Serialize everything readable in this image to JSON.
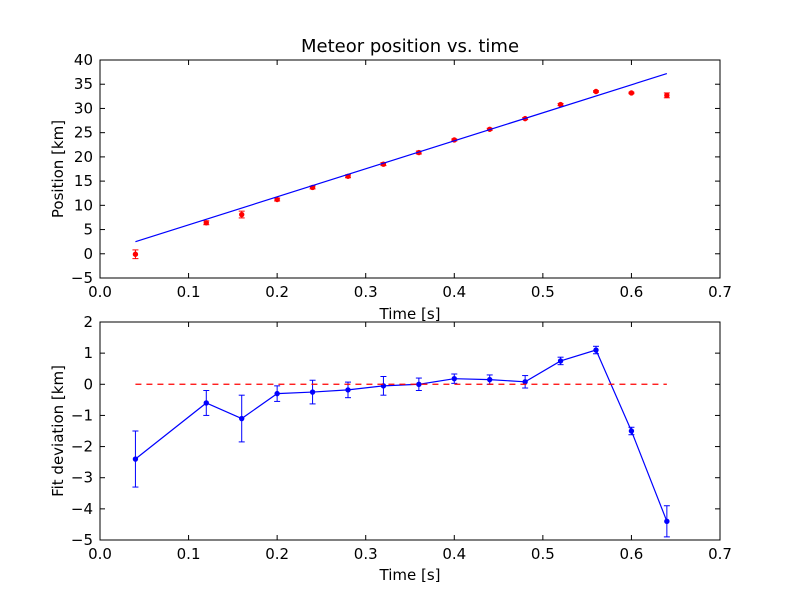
{
  "chart_data": [
    {
      "type": "scatter",
      "title": "Meteor position vs. time",
      "xlabel": "Time [s]",
      "ylabel": "Position [km]",
      "xlim": [
        0.0,
        0.7
      ],
      "ylim": [
        -5,
        40
      ],
      "xticks": [
        "0.0",
        "0.1",
        "0.2",
        "0.3",
        "0.4",
        "0.5",
        "0.6",
        "0.7"
      ],
      "yticks": [
        "−5",
        "0",
        "5",
        "10",
        "15",
        "20",
        "25",
        "30",
        "35",
        "40"
      ],
      "grid": false,
      "series": [
        {
          "kind": "points_with_errorbars",
          "color": "#ff0000",
          "x": [
            0.04,
            0.12,
            0.16,
            0.2,
            0.24,
            0.28,
            0.32,
            0.36,
            0.4,
            0.44,
            0.48,
            0.52,
            0.56,
            0.6,
            0.64
          ],
          "y": [
            -0.1,
            6.4,
            8.1,
            11.2,
            13.7,
            16.0,
            18.5,
            20.9,
            23.5,
            25.7,
            27.9,
            30.8,
            33.5,
            33.2,
            32.7
          ],
          "yerr": [
            0.9,
            0.4,
            0.7,
            0.3,
            0.3,
            0.3,
            0.3,
            0.3,
            0.2,
            0.2,
            0.2,
            0.2,
            0.15,
            0.15,
            0.5
          ]
        },
        {
          "kind": "line",
          "color": "#0000ff",
          "x": [
            0.04,
            0.64
          ],
          "y": [
            2.5,
            37.2
          ]
        }
      ]
    },
    {
      "type": "line",
      "title": "",
      "xlabel": "Time [s]",
      "ylabel": "Fit deviation [km]",
      "xlim": [
        0.0,
        0.7
      ],
      "ylim": [
        -5,
        2
      ],
      "xticks": [
        "0.0",
        "0.1",
        "0.2",
        "0.3",
        "0.4",
        "0.5",
        "0.6",
        "0.7"
      ],
      "yticks": [
        "−5",
        "−4",
        "−3",
        "−2",
        "−1",
        "0",
        "1",
        "2"
      ],
      "grid": false,
      "series": [
        {
          "kind": "line_with_errorbars",
          "color": "#0000ff",
          "x": [
            0.04,
            0.12,
            0.16,
            0.2,
            0.24,
            0.28,
            0.32,
            0.36,
            0.4,
            0.44,
            0.48,
            0.52,
            0.56,
            0.6,
            0.64
          ],
          "y": [
            -2.4,
            -0.6,
            -1.1,
            -0.3,
            -0.25,
            -0.18,
            -0.05,
            0.0,
            0.18,
            0.15,
            0.08,
            0.75,
            1.1,
            -1.5,
            -4.4
          ],
          "yerr": [
            0.9,
            0.4,
            0.75,
            0.25,
            0.38,
            0.25,
            0.3,
            0.2,
            0.15,
            0.15,
            0.2,
            0.12,
            0.12,
            0.12,
            0.5
          ]
        },
        {
          "kind": "dashed_line",
          "color": "#ff0000",
          "x": [
            0.04,
            0.64
          ],
          "y": [
            0,
            0
          ]
        }
      ]
    }
  ]
}
